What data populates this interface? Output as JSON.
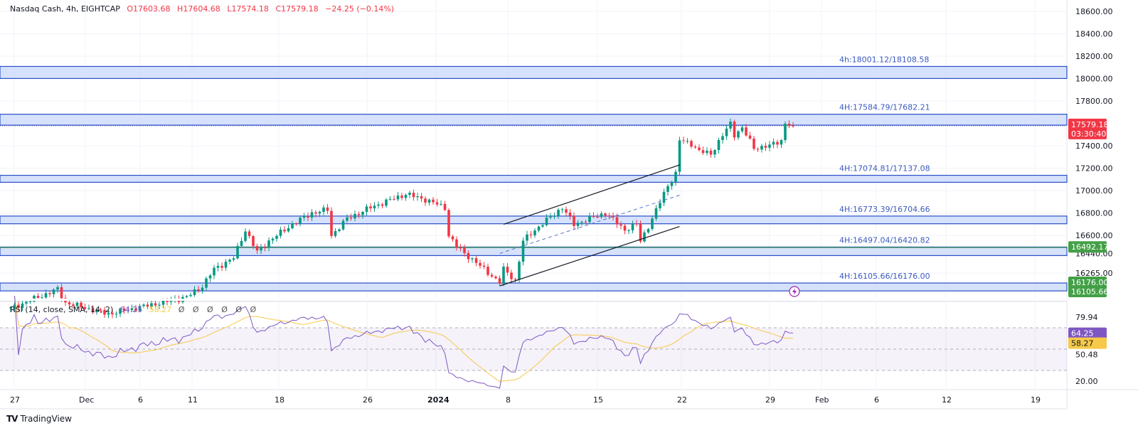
{
  "legend": {
    "symbol": "Nasdaq Cash, 4h, EIGHTCAP",
    "open": "O17603.68",
    "high": "H17604.68",
    "low": "L17574.18",
    "close": "C17579.18",
    "change": "−24.25 (−0.14%)"
  },
  "rsi_legend": {
    "title": "RSI (14, close, SMA, 14, 2)",
    "rsi_value": "64.25",
    "sma_value": "58.27",
    "empty_values": "Ø Ø Ø Ø Ø Ø"
  },
  "branding": {
    "logo_text": "TradingView"
  },
  "colors": {
    "up": "#089981",
    "down": "#f23645",
    "zone_fill": "#d2defc",
    "zone_border": "#2b4fc7",
    "rsi": "#7e57c2",
    "rsi_sma": "#f7c948",
    "support": "#43a047"
  },
  "chart_data": {
    "type": "candlestick",
    "title": "Nasdaq Cash, 4h, EIGHTCAP",
    "price_axis": {
      "ticks": [
        "18600.00",
        "18400.00",
        "18200.00",
        "18000.00",
        "17800.00",
        "17400.00",
        "17200.00",
        "17000.00",
        "16800.00",
        "16600.00",
        "16440.00",
        "16265.00"
      ],
      "range": [
        16040,
        18700
      ]
    },
    "time_axis": {
      "labels": [
        "27",
        "Dec",
        "6",
        "11",
        "18",
        "26",
        "2024",
        "8",
        "15",
        "22",
        "29",
        "Feb",
        "6",
        "12",
        "19"
      ]
    },
    "price_waypoints": [
      [
        0,
        15950
      ],
      [
        12,
        16120
      ],
      [
        14,
        16000
      ],
      [
        25,
        15900
      ],
      [
        45,
        16050
      ],
      [
        49,
        16150
      ],
      [
        52,
        16300
      ],
      [
        57,
        16400
      ],
      [
        60,
        16650
      ],
      [
        63,
        16450
      ],
      [
        66,
        16550
      ],
      [
        72,
        16700
      ],
      [
        77,
        16800
      ],
      [
        81,
        16830
      ],
      [
        82,
        16600
      ],
      [
        86,
        16750
      ],
      [
        92,
        16850
      ],
      [
        101,
        16970
      ],
      [
        106,
        16920
      ],
      [
        111,
        16850
      ],
      [
        112,
        16600
      ],
      [
        114,
        16500
      ],
      [
        121,
        16300
      ],
      [
        125,
        16180
      ],
      [
        126,
        16300
      ],
      [
        129,
        16200
      ],
      [
        131,
        16550
      ],
      [
        133,
        16620
      ],
      [
        141,
        16850
      ],
      [
        144,
        16700
      ],
      [
        152,
        16800
      ],
      [
        157,
        16650
      ],
      [
        160,
        16700
      ],
      [
        161,
        16550
      ],
      [
        164,
        16750
      ],
      [
        168,
        17050
      ],
      [
        170,
        17150
      ],
      [
        171,
        17450
      ],
      [
        174,
        17420
      ],
      [
        176,
        17350
      ],
      [
        179,
        17330
      ],
      [
        184,
        17600
      ],
      [
        185,
        17500
      ],
      [
        187,
        17560
      ],
      [
        190,
        17380
      ],
      [
        194,
        17400
      ],
      [
        197,
        17450
      ],
      [
        198,
        17600
      ],
      [
        200,
        17579.18
      ]
    ],
    "zones": [
      {
        "label": "4h:18001.12/18108.58",
        "low": 18001.12,
        "high": 18108.58
      },
      {
        "label": "4H:17584.79/17682.21",
        "low": 17584.79,
        "high": 17682.21
      },
      {
        "label": "4H:17074.81/17137.08",
        "low": 17074.81,
        "high": 17137.08
      },
      {
        "label": "4H:16773.39/16704.66",
        "low": 16704.66,
        "high": 16773.39
      },
      {
        "label": "4H:16497.04/16420.82",
        "low": 16420.82,
        "high": 16497.04
      },
      {
        "label": "4H:16105.66/16176.00",
        "low": 16105.66,
        "high": 16176.0
      }
    ],
    "channel": {
      "upper": [
        [
          126,
          16700
        ],
        [
          171,
          17230
        ]
      ],
      "lower": [
        [
          125,
          16150
        ],
        [
          171,
          16680
        ]
      ],
      "middle": [
        [
          125,
          16440
        ],
        [
          171,
          16960
        ]
      ]
    },
    "last_price": {
      "value": 17579.18,
      "label": "17579.18",
      "countdown": "03:30:40"
    },
    "support_line": {
      "value": 16492.17,
      "label": "16492.17"
    },
    "zone_price_labels": [
      "16176.00",
      "16105.66"
    ],
    "rsi": {
      "period": 14,
      "upper": 70,
      "middle": 50,
      "lower": 30,
      "ticks": [
        "79.94",
        "50.48",
        "20.00"
      ],
      "current": "64.25",
      "sma_current": "58.27"
    }
  }
}
